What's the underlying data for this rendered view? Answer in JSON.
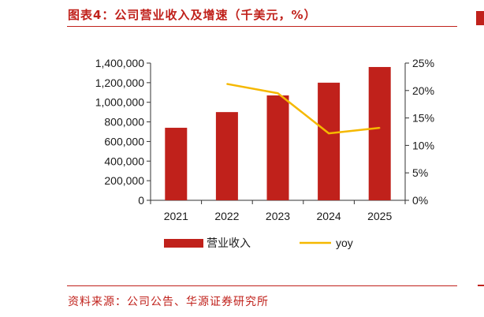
{
  "figure": {
    "title": "图表4：公司营业收入及增速（千美元，%）",
    "source": "资料来源：公司公告、华源证券研究所",
    "accent_color": "#c0211b"
  },
  "chart_data": {
    "type": "bar",
    "categories": [
      "2021",
      "2022",
      "2023",
      "2024",
      "2025"
    ],
    "series": [
      {
        "name": "营业收入",
        "type": "bar",
        "axis": "left",
        "color": "#c0211b",
        "values": [
          740000,
          900000,
          1070000,
          1200000,
          1360000
        ]
      },
      {
        "name": "yoy",
        "type": "line",
        "axis": "right",
        "color": "#f5b800",
        "values": [
          null,
          21.2,
          19.5,
          12.2,
          13.2
        ]
      }
    ],
    "y_left": {
      "min": 0,
      "max": 1400000,
      "ticks": [
        0,
        200000,
        400000,
        600000,
        800000,
        1000000,
        1200000,
        1400000
      ],
      "tick_labels": [
        "0",
        "200,000",
        "400,000",
        "600,000",
        "800,000",
        "1,000,000",
        "1,200,000",
        "1,400,000"
      ]
    },
    "y_right": {
      "min": 0,
      "max": 25,
      "ticks": [
        0,
        5,
        10,
        15,
        20,
        25
      ],
      "tick_labels": [
        "0%",
        "5%",
        "10%",
        "15%",
        "20%",
        "25%"
      ]
    },
    "grid": false,
    "legend_position": "bottom"
  }
}
